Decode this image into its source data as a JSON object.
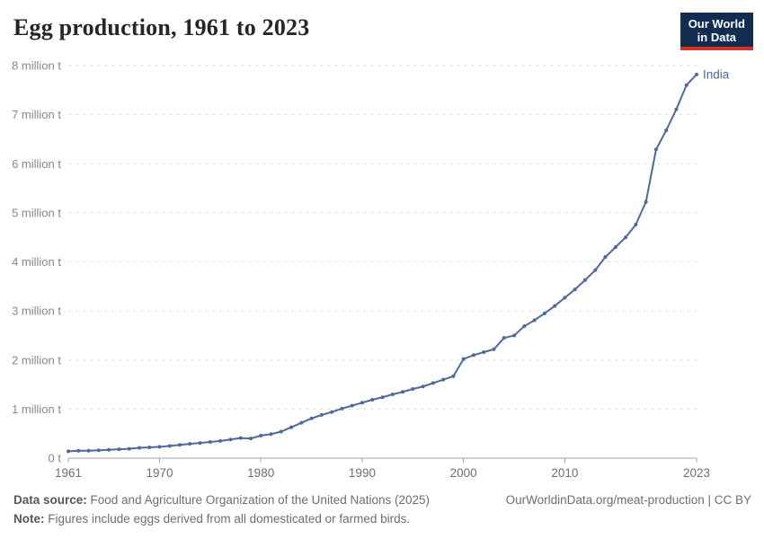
{
  "header": {
    "title": "Egg production, 1961 to 2023",
    "logo": {
      "line1": "Our World",
      "line2": "in Data"
    }
  },
  "chart_data": {
    "type": "line",
    "title": "Egg production, 1961 to 2023",
    "xlabel": "",
    "ylabel": "",
    "unit": "million t",
    "xlim": [
      1961,
      2023
    ],
    "ylim": [
      0,
      8
    ],
    "grid": "horizontal-dashed",
    "legend_position": "end-of-line-label",
    "x_ticks": [
      1961,
      1970,
      1980,
      1990,
      2000,
      2010,
      2023
    ],
    "y_ticks": [
      0,
      1,
      2,
      3,
      4,
      5,
      6,
      7,
      8
    ],
    "y_tick_labels": [
      "0 t",
      "1 million t",
      "2 million t",
      "3 million t",
      "4 million t",
      "5 million t",
      "6 million t",
      "7 million t",
      "8 million t"
    ],
    "x": [
      1961,
      1962,
      1963,
      1964,
      1965,
      1966,
      1967,
      1968,
      1969,
      1970,
      1971,
      1972,
      1973,
      1974,
      1975,
      1976,
      1977,
      1978,
      1979,
      1980,
      1981,
      1982,
      1983,
      1984,
      1985,
      1986,
      1987,
      1988,
      1989,
      1990,
      1991,
      1992,
      1993,
      1994,
      1995,
      1996,
      1997,
      1998,
      1999,
      2000,
      2001,
      2002,
      2003,
      2004,
      2005,
      2006,
      2007,
      2008,
      2009,
      2010,
      2011,
      2012,
      2013,
      2014,
      2015,
      2016,
      2017,
      2018,
      2019,
      2020,
      2021,
      2022,
      2023
    ],
    "series": [
      {
        "name": "India",
        "color": "#4c6a9c",
        "values": [
          0.14,
          0.15,
          0.15,
          0.16,
          0.17,
          0.18,
          0.19,
          0.21,
          0.22,
          0.23,
          0.25,
          0.27,
          0.29,
          0.31,
          0.33,
          0.35,
          0.38,
          0.41,
          0.4,
          0.46,
          0.49,
          0.54,
          0.63,
          0.72,
          0.81,
          0.88,
          0.94,
          1.01,
          1.07,
          1.13,
          1.19,
          1.24,
          1.3,
          1.35,
          1.41,
          1.46,
          1.53,
          1.6,
          1.67,
          2.02,
          2.1,
          2.16,
          2.22,
          2.45,
          2.5,
          2.69,
          2.81,
          2.95,
          3.1,
          3.27,
          3.44,
          3.63,
          3.83,
          4.1,
          4.3,
          4.5,
          4.76,
          5.22,
          6.29,
          6.68,
          7.11,
          7.6,
          7.82
        ]
      }
    ]
  },
  "footer": {
    "source_label": "Data source:",
    "source_text": " Food and Agriculture Organization of the United Nations (2025)",
    "cite_text": "OurWorldinData.org/meat-production | CC BY",
    "note_label": "Note:",
    "note_text": " Figures include eggs derived from all domesticated or farmed birds."
  },
  "colors": {
    "line": "#4c6a9c",
    "entity_label": "#4c6a9c",
    "gridline": "#dddddd",
    "axis": "#a5a5a5",
    "y_tick_text": "#888888",
    "x_tick_text": "#6f6f6f",
    "logo_bg": "#132c52",
    "logo_accent": "#d93025",
    "title_text": "#262626"
  }
}
